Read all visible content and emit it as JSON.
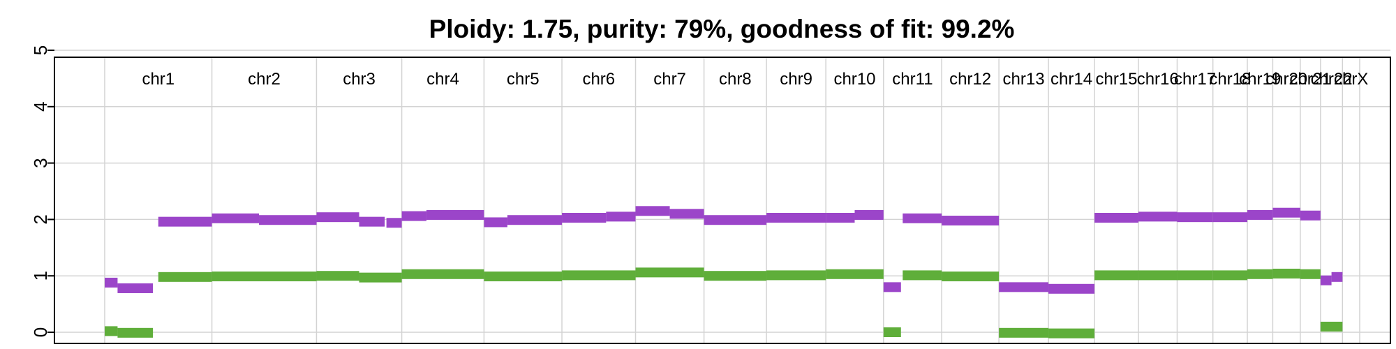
{
  "chart_data": {
    "type": "line",
    "title": "Ploidy: 1.75, purity: 79%, goodness of fit: 99.2%",
    "xlabel": "",
    "ylabel": "",
    "ylim": [
      0,
      5
    ],
    "yticks": [
      "0",
      "1",
      "2",
      "3",
      "4",
      "5"
    ],
    "grid": true,
    "colors": {
      "total_copy_number": "#9b45c9",
      "minor_allele": "#5fae3a",
      "grid": "#d3d3d3",
      "frame": "#000000"
    },
    "chromosomes": [
      {
        "name": "chr1",
        "len": 249
      },
      {
        "name": "chr2",
        "len": 243
      },
      {
        "name": "chr3",
        "len": 198
      },
      {
        "name": "chr4",
        "len": 191
      },
      {
        "name": "chr5",
        "len": 181
      },
      {
        "name": "chr6",
        "len": 171
      },
      {
        "name": "chr7",
        "len": 159
      },
      {
        "name": "chr8",
        "len": 145
      },
      {
        "name": "chr9",
        "len": 138
      },
      {
        "name": "chr10",
        "len": 134
      },
      {
        "name": "chr11",
        "len": 135
      },
      {
        "name": "chr12",
        "len": 133
      },
      {
        "name": "chr13",
        "len": 115
      },
      {
        "name": "chr14",
        "len": 107
      },
      {
        "name": "chr15",
        "len": 102
      },
      {
        "name": "chr16",
        "len": 90
      },
      {
        "name": "chr17",
        "len": 83
      },
      {
        "name": "chr18",
        "len": 80
      },
      {
        "name": "chr19",
        "len": 59
      },
      {
        "name": "chr20",
        "len": 64
      },
      {
        "name": "chr21",
        "len": 47
      },
      {
        "name": "chr22",
        "len": 51
      },
      {
        "name": "chrX",
        "len": 40
      }
    ],
    "series": [
      {
        "name": "total_copy_number",
        "segments": [
          {
            "chr": "chr1",
            "start": 0,
            "end": 0.12,
            "value": 0.88
          },
          {
            "chr": "chr1",
            "start": 0.12,
            "end": 0.45,
            "value": 0.78
          },
          {
            "chr": "chr1",
            "start": 0.5,
            "end": 1.0,
            "value": 1.96
          },
          {
            "chr": "chr2",
            "start": 0,
            "end": 0.45,
            "value": 2.02
          },
          {
            "chr": "chr2",
            "start": 0.45,
            "end": 1.0,
            "value": 1.99
          },
          {
            "chr": "chr3",
            "start": 0,
            "end": 0.5,
            "value": 2.04
          },
          {
            "chr": "chr3",
            "start": 0.5,
            "end": 0.8,
            "value": 1.96
          },
          {
            "chr": "chr3",
            "start": 0.82,
            "end": 1.0,
            "value": 1.94
          },
          {
            "chr": "chr4",
            "start": 0,
            "end": 0.3,
            "value": 2.06
          },
          {
            "chr": "chr4",
            "start": 0.3,
            "end": 1.0,
            "value": 2.08
          },
          {
            "chr": "chr5",
            "start": 0,
            "end": 0.3,
            "value": 1.95
          },
          {
            "chr": "chr5",
            "start": 0.3,
            "end": 1.0,
            "value": 1.99
          },
          {
            "chr": "chr6",
            "start": 0,
            "end": 0.6,
            "value": 2.03
          },
          {
            "chr": "chr6",
            "start": 0.6,
            "end": 1.0,
            "value": 2.05
          },
          {
            "chr": "chr7",
            "start": 0,
            "end": 0.5,
            "value": 2.15
          },
          {
            "chr": "chr7",
            "start": 0.5,
            "end": 1.0,
            "value": 2.1
          },
          {
            "chr": "chr8",
            "start": 0,
            "end": 1.0,
            "value": 1.99
          },
          {
            "chr": "chr9",
            "start": 0,
            "end": 1.0,
            "value": 2.03
          },
          {
            "chr": "chr10",
            "start": 0,
            "end": 0.5,
            "value": 2.03
          },
          {
            "chr": "chr10",
            "start": 0.5,
            "end": 1.0,
            "value": 2.08
          },
          {
            "chr": "chr11",
            "start": 0,
            "end": 0.3,
            "value": 0.8
          },
          {
            "chr": "chr11",
            "start": 0.33,
            "end": 1.0,
            "value": 2.02
          },
          {
            "chr": "chr12",
            "start": 0,
            "end": 1.0,
            "value": 1.98
          },
          {
            "chr": "chr13",
            "start": 0,
            "end": 1.0,
            "value": 0.8
          },
          {
            "chr": "chr14",
            "start": 0,
            "end": 1.0,
            "value": 0.77
          },
          {
            "chr": "chr15",
            "start": 0,
            "end": 1.0,
            "value": 2.03
          },
          {
            "chr": "chr16",
            "start": 0,
            "end": 1.0,
            "value": 2.05
          },
          {
            "chr": "chr17",
            "start": 0,
            "end": 1.0,
            "value": 2.04
          },
          {
            "chr": "chr18",
            "start": 0,
            "end": 1.0,
            "value": 2.04
          },
          {
            "chr": "chr19",
            "start": 0,
            "end": 1.0,
            "value": 2.08
          },
          {
            "chr": "chr20",
            "start": 0,
            "end": 1.0,
            "value": 2.12
          },
          {
            "chr": "chr21",
            "start": 0,
            "end": 1.0,
            "value": 2.07
          },
          {
            "chr": "chr22",
            "start": 0,
            "end": 0.5,
            "value": 0.92
          },
          {
            "chr": "chr22",
            "start": 0.5,
            "end": 1.0,
            "value": 0.98
          }
        ]
      },
      {
        "name": "minor_allele",
        "segments": [
          {
            "chr": "chr1",
            "start": 0,
            "end": 0.12,
            "value": 0.02
          },
          {
            "chr": "chr1",
            "start": 0.12,
            "end": 0.45,
            "value": -0.01
          },
          {
            "chr": "chr1",
            "start": 0.5,
            "end": 1.0,
            "value": 0.98
          },
          {
            "chr": "chr2",
            "start": 0,
            "end": 1.0,
            "value": 0.99
          },
          {
            "chr": "chr3",
            "start": 0,
            "end": 0.5,
            "value": 1.0
          },
          {
            "chr": "chr3",
            "start": 0.5,
            "end": 1.0,
            "value": 0.97
          },
          {
            "chr": "chr4",
            "start": 0,
            "end": 1.0,
            "value": 1.03
          },
          {
            "chr": "chr5",
            "start": 0,
            "end": 1.0,
            "value": 0.99
          },
          {
            "chr": "chr6",
            "start": 0,
            "end": 1.0,
            "value": 1.01
          },
          {
            "chr": "chr7",
            "start": 0,
            "end": 1.0,
            "value": 1.06
          },
          {
            "chr": "chr8",
            "start": 0,
            "end": 1.0,
            "value": 1.0
          },
          {
            "chr": "chr9",
            "start": 0,
            "end": 1.0,
            "value": 1.01
          },
          {
            "chr": "chr10",
            "start": 0,
            "end": 1.0,
            "value": 1.03
          },
          {
            "chr": "chr11",
            "start": 0,
            "end": 0.3,
            "value": 0.0
          },
          {
            "chr": "chr11",
            "start": 0.33,
            "end": 1.0,
            "value": 1.01
          },
          {
            "chr": "chr12",
            "start": 0,
            "end": 1.0,
            "value": 0.99
          },
          {
            "chr": "chr13",
            "start": 0,
            "end": 1.0,
            "value": -0.01
          },
          {
            "chr": "chr14",
            "start": 0,
            "end": 1.0,
            "value": -0.02
          },
          {
            "chr": "chr15",
            "start": 0,
            "end": 1.0,
            "value": 1.01
          },
          {
            "chr": "chr16",
            "start": 0,
            "end": 1.0,
            "value": 1.01
          },
          {
            "chr": "chr17",
            "start": 0,
            "end": 1.0,
            "value": 1.01
          },
          {
            "chr": "chr18",
            "start": 0,
            "end": 1.0,
            "value": 1.01
          },
          {
            "chr": "chr19",
            "start": 0,
            "end": 1.0,
            "value": 1.03
          },
          {
            "chr": "chr20",
            "start": 0,
            "end": 1.0,
            "value": 1.04
          },
          {
            "chr": "chr21",
            "start": 0,
            "end": 1.0,
            "value": 1.03
          },
          {
            "chr": "chr22",
            "start": 0,
            "end": 1.0,
            "value": 0.1
          }
        ]
      }
    ]
  }
}
